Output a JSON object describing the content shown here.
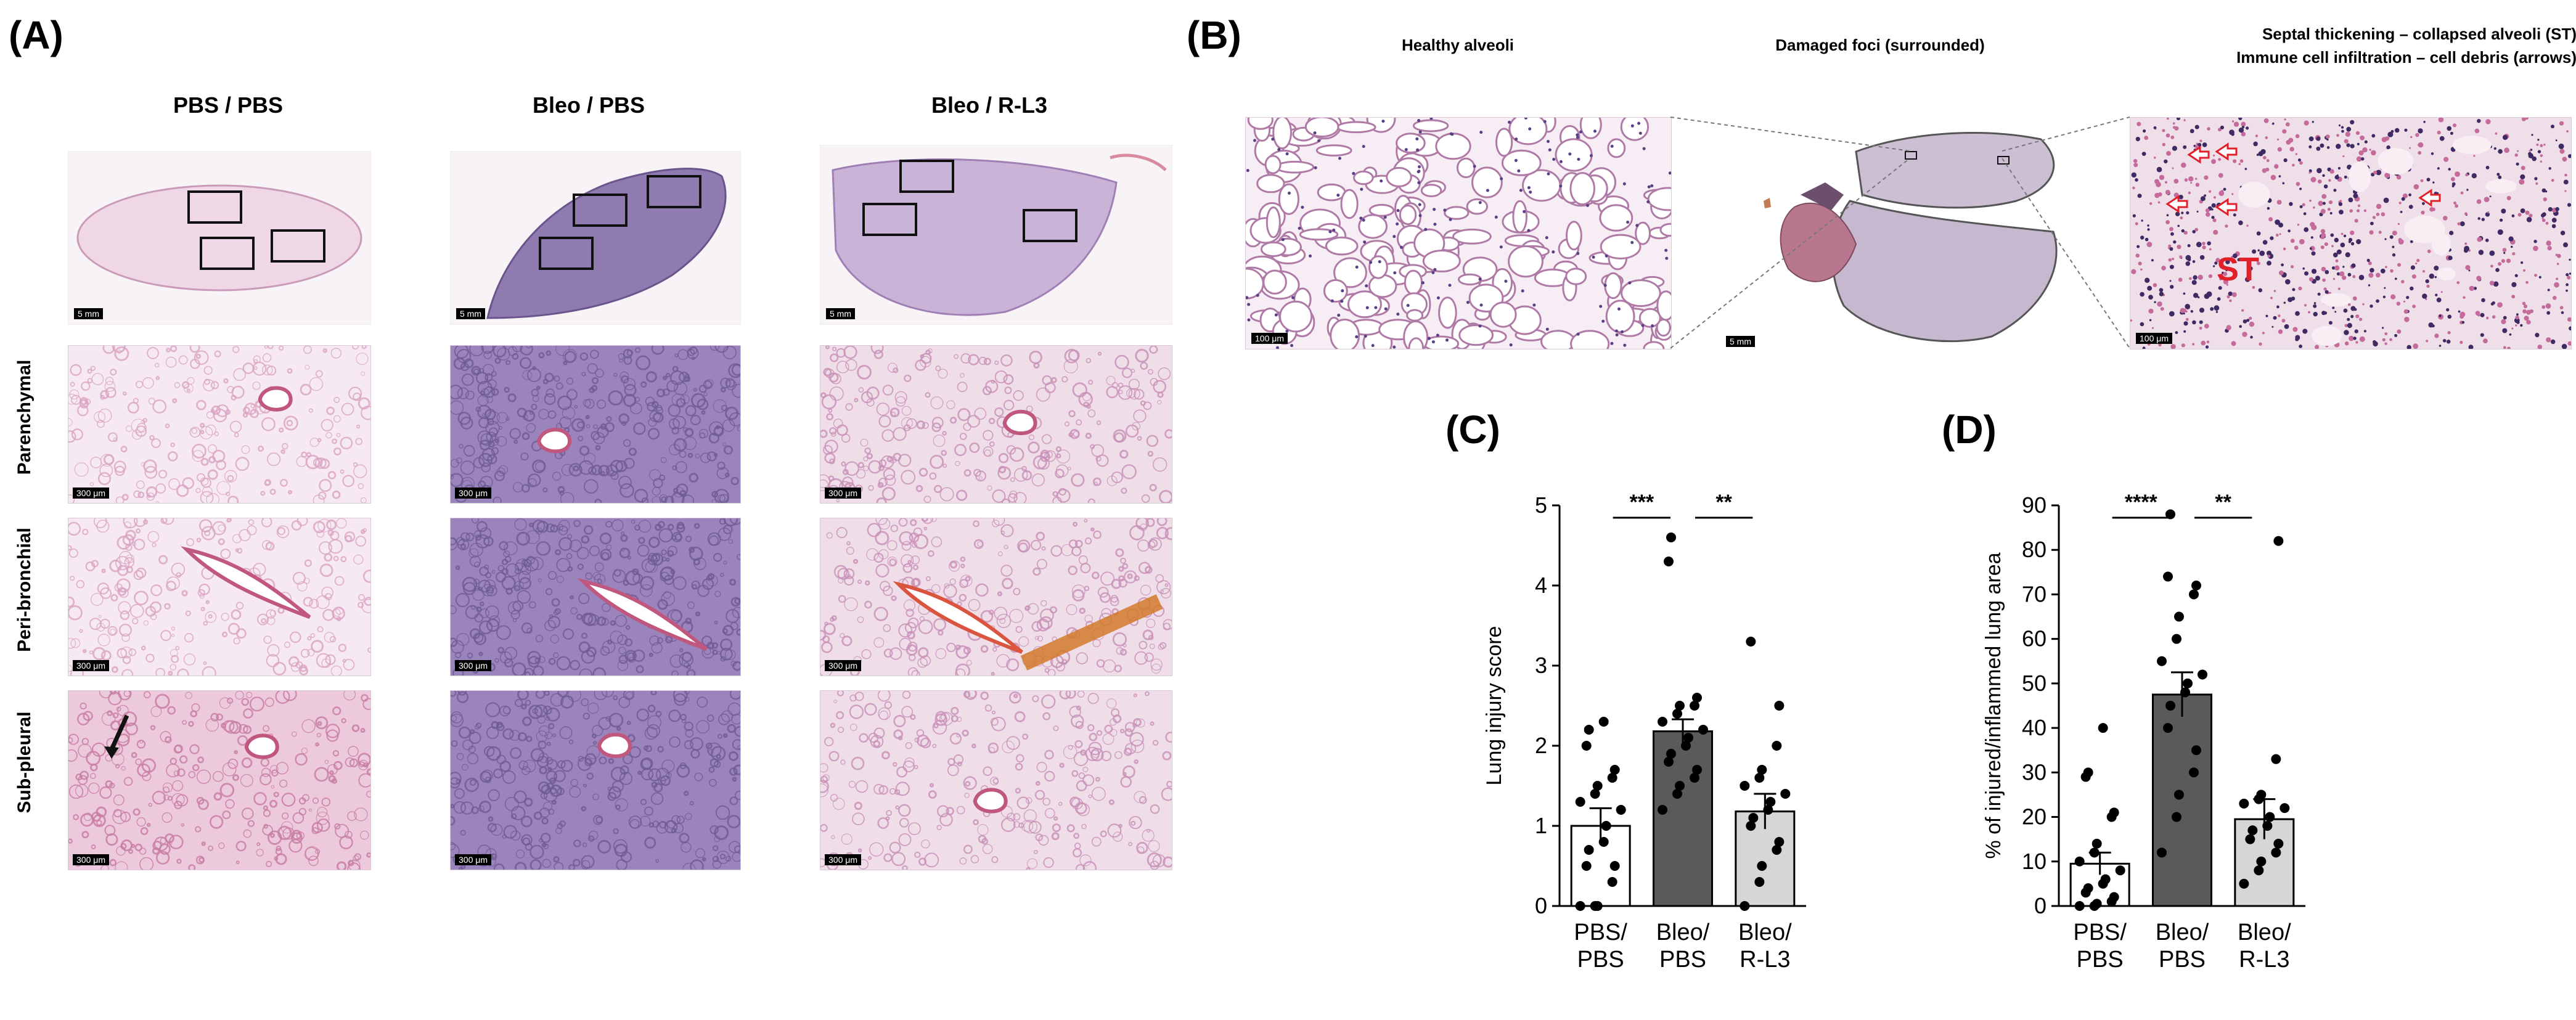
{
  "panelA": {
    "label": "(A)",
    "columns": [
      "PBS / PBS",
      "Bleo / PBS",
      "Bleo / R-L3"
    ],
    "rows": [
      "Parenchymal",
      "Peri-bronchial",
      "Sub-pleural"
    ],
    "overview_scale": "5 mm",
    "detail_scale": "300 μm"
  },
  "panelB": {
    "label": "(B)",
    "titles": {
      "healthy": "Healthy alveoli",
      "damaged": "Damaged foci (surrounded)",
      "septal_line1": "Septal thickening – collapsed alveoli (ST)",
      "septal_line2": "Immune cell infiltration – cell debris (arrows)"
    },
    "st_label": "ST",
    "scale_small": "100 μm",
    "scale_large": "5 mm"
  },
  "colors": {
    "tissue_light": "#f3e6f1",
    "tissue_purple": "#8a6fa8",
    "tissue_pink": "#d79ab9",
    "bar_dark": "#5a5a5a",
    "bar_light": "#d6d6d6",
    "bar_white": "#ffffff"
  },
  "chart_data": [
    {
      "type": "bar",
      "panel": "(C)",
      "categories": [
        "PBS/\nPBS",
        "Bleo/\nPBS",
        "Bleo/\nR-L3"
      ],
      "ylabel": "Lung injury score",
      "ylim": [
        0,
        5
      ],
      "yticks": [
        0,
        1,
        2,
        3,
        4,
        5
      ],
      "values": [
        1.0,
        2.18,
        1.18
      ],
      "errors": [
        0.22,
        0.15,
        0.22
      ],
      "points": [
        [
          0.0,
          0.0,
          0.0,
          0.3,
          0.5,
          0.5,
          0.7,
          0.8,
          1.0,
          1.2,
          1.3,
          1.4,
          1.5,
          1.6,
          1.7,
          2.0,
          2.2,
          2.3
        ],
        [
          1.2,
          1.4,
          1.5,
          1.6,
          1.7,
          1.8,
          1.9,
          2.0,
          2.1,
          2.2,
          2.3,
          2.4,
          2.5,
          2.5,
          2.6,
          4.3,
          4.6
        ],
        [
          0.0,
          0.3,
          0.5,
          0.7,
          0.8,
          1.0,
          1.1,
          1.2,
          1.3,
          1.4,
          1.5,
          1.6,
          1.7,
          2.0,
          2.5,
          3.3
        ]
      ],
      "significance": [
        {
          "from": 0,
          "to": 1,
          "label": "***"
        },
        {
          "from": 1,
          "to": 2,
          "label": "**"
        }
      ]
    },
    {
      "type": "bar",
      "panel": "(D)",
      "categories": [
        "PBS/\nPBS",
        "Bleo/\nPBS",
        "Bleo/\nR-L3"
      ],
      "ylabel": "% of injured/inflammed lung area",
      "ylim": [
        0,
        90
      ],
      "yticks": [
        0,
        10,
        20,
        30,
        40,
        50,
        60,
        70,
        80,
        90
      ],
      "values": [
        9.5,
        47.5,
        19.5
      ],
      "errors": [
        2.5,
        5.0,
        4.5
      ],
      "points": [
        [
          0.0,
          0.0,
          0.5,
          1.0,
          2.0,
          3.0,
          4.0,
          5.0,
          6.0,
          8.0,
          10.0,
          12.0,
          14.0,
          20.0,
          21.0,
          29.0,
          30.0,
          40.0
        ],
        [
          12.0,
          20.0,
          25.0,
          30.0,
          35.0,
          40.0,
          45.0,
          48.0,
          50.0,
          52.0,
          55.0,
          60.0,
          65.0,
          70.0,
          72.0,
          74.0,
          88.0
        ],
        [
          5.0,
          8.0,
          10.0,
          12.0,
          14.0,
          15.0,
          17.0,
          18.0,
          20.0,
          22.0,
          23.0,
          24.0,
          25.0,
          33.0,
          82.0
        ]
      ],
      "significance": [
        {
          "from": 0,
          "to": 1,
          "label": "****"
        },
        {
          "from": 1,
          "to": 2,
          "label": "**"
        }
      ]
    }
  ]
}
